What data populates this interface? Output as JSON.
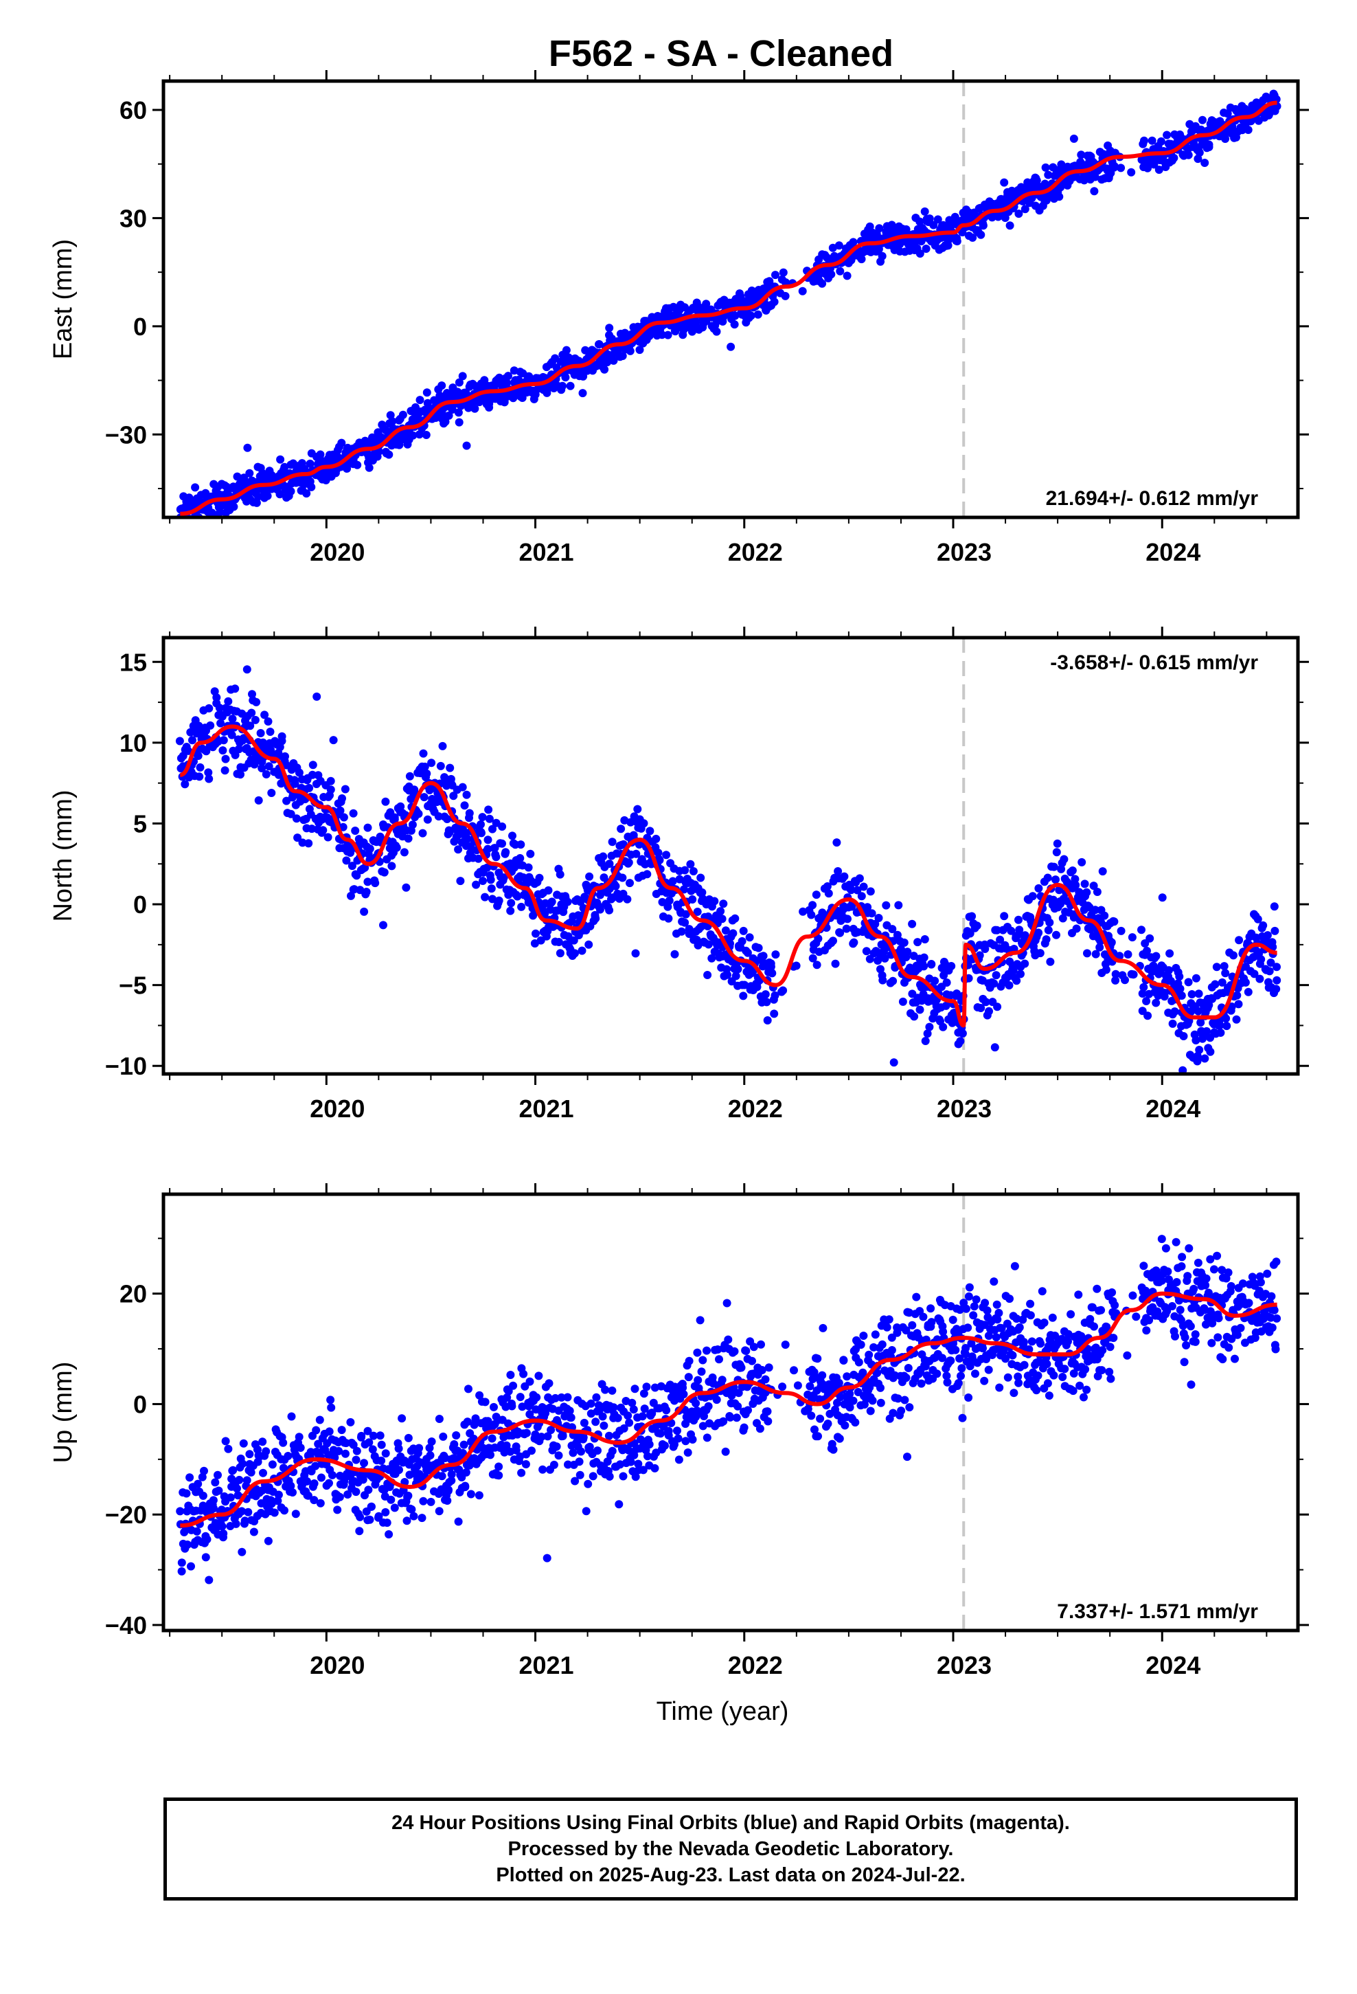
{
  "chart_data": [
    {
      "type": "scatter",
      "title": "F562  - SA - Cleaned",
      "ylabel": "East (mm)",
      "xlabel": "",
      "xlim": [
        2019.22,
        2024.65
      ],
      "ylim": [
        -53,
        68
      ],
      "xticks": [
        2020,
        2021,
        2022,
        2023,
        2024
      ],
      "yticks": [
        -30,
        0,
        30,
        60
      ],
      "grid": false,
      "marker_date": 2023.05,
      "rate_text": "21.694+/- 0.612 mm/yr",
      "rate_position": "bottom-right",
      "colors": {
        "points": "#0000ff",
        "model": "#ff0000",
        "marker": "#c8c8c8"
      },
      "series": [
        {
          "kind": "model-curve",
          "x": [
            2019.3,
            2019.5,
            2019.7,
            2019.9,
            2020.0,
            2020.2,
            2020.4,
            2020.6,
            2020.8,
            2021.0,
            2021.2,
            2021.4,
            2021.6,
            2021.8,
            2022.0,
            2022.2,
            2022.4,
            2022.6,
            2022.8,
            2023.0,
            2023.05,
            2023.2,
            2023.4,
            2023.6,
            2023.8,
            2024.0,
            2024.2,
            2024.4,
            2024.55
          ],
          "y": [
            -52,
            -48,
            -44,
            -41,
            -39,
            -34,
            -28,
            -21,
            -18,
            -16,
            -11,
            -5,
            1,
            3,
            5,
            11,
            17,
            23,
            25,
            26,
            28,
            32,
            37,
            43,
            47,
            48,
            53,
            58,
            62
          ]
        },
        {
          "kind": "points",
          "x_start": 2019.3,
          "x_end": 2024.55,
          "gaps": [
            [
              2022.15,
              2022.32
            ],
            [
              2023.78,
              2023.9
            ]
          ],
          "spread": 3.2
        }
      ]
    },
    {
      "type": "scatter",
      "ylabel": "North (mm)",
      "xlabel": "",
      "xlim": [
        2019.22,
        2024.65
      ],
      "ylim": [
        -10.5,
        16.5
      ],
      "xticks": [
        2020,
        2021,
        2022,
        2023,
        2024
      ],
      "yticks": [
        -10,
        -5,
        0,
        5,
        10,
        15
      ],
      "grid": false,
      "marker_date": 2023.05,
      "rate_text": "-3.658+/- 0.615 mm/yr",
      "rate_position": "top-right",
      "colors": {
        "points": "#0000ff",
        "model": "#ff0000",
        "marker": "#c8c8c8"
      },
      "series": [
        {
          "kind": "model-curve",
          "x": [
            2019.3,
            2019.4,
            2019.55,
            2019.75,
            2019.85,
            2020.0,
            2020.1,
            2020.2,
            2020.35,
            2020.5,
            2020.65,
            2020.8,
            2020.95,
            2021.05,
            2021.2,
            2021.3,
            2021.5,
            2021.65,
            2021.8,
            2022.0,
            2022.15,
            2022.3,
            2022.5,
            2022.65,
            2022.8,
            2023.0,
            2023.05,
            2023.06,
            2023.15,
            2023.3,
            2023.5,
            2023.65,
            2023.8,
            2024.0,
            2024.15,
            2024.25,
            2024.45,
            2024.55
          ],
          "y": [
            8,
            10,
            11,
            9,
            7,
            6,
            4,
            2.5,
            5,
            7.5,
            5,
            2.5,
            1,
            -1,
            -1.5,
            1,
            4,
            1,
            -1,
            -3.5,
            -5,
            -2,
            0.3,
            -2,
            -4.5,
            -6,
            -7.5,
            -2.5,
            -4,
            -3,
            1.2,
            -1,
            -3.5,
            -5,
            -7,
            -7,
            -2.5,
            -3
          ]
        },
        {
          "kind": "points",
          "x_start": 2019.3,
          "x_end": 2024.55,
          "gaps": [
            [
              2022.15,
              2022.32
            ],
            [
              2023.78,
              2023.9
            ]
          ],
          "spread": 1.8
        }
      ]
    },
    {
      "type": "scatter",
      "ylabel": "Up (mm)",
      "xlabel": "Time (year)",
      "xlim": [
        2019.22,
        2024.65
      ],
      "ylim": [
        -41,
        38
      ],
      "xticks": [
        2020,
        2021,
        2022,
        2023,
        2024
      ],
      "yticks": [
        -40,
        -20,
        0,
        20
      ],
      "grid": false,
      "marker_date": 2023.05,
      "rate_text": "7.337+/- 1.571 mm/yr",
      "rate_position": "bottom-right",
      "colors": {
        "points": "#0000ff",
        "model": "#ff0000",
        "marker": "#c8c8c8"
      },
      "series": [
        {
          "kind": "model-curve",
          "x": [
            2019.3,
            2019.5,
            2019.7,
            2019.95,
            2020.2,
            2020.4,
            2020.6,
            2020.8,
            2021.0,
            2021.2,
            2021.4,
            2021.6,
            2021.8,
            2022.0,
            2022.2,
            2022.35,
            2022.5,
            2022.7,
            2022.9,
            2023.05,
            2023.2,
            2023.4,
            2023.55,
            2023.7,
            2023.85,
            2024.0,
            2024.2,
            2024.35,
            2024.55
          ],
          "y": [
            -22,
            -20,
            -14,
            -10,
            -12,
            -15,
            -11,
            -5,
            -3,
            -5,
            -7,
            -3,
            2,
            4,
            2,
            0,
            3,
            8,
            11,
            12,
            11,
            9,
            9,
            12,
            17,
            20,
            19,
            16,
            18
          ]
        },
        {
          "kind": "points",
          "x_start": 2019.3,
          "x_end": 2024.55,
          "gaps": [
            [
              2022.12,
              2022.3
            ],
            [
              2023.78,
              2023.9
            ]
          ],
          "spread": 6.5
        }
      ]
    }
  ],
  "footer": {
    "line1": "24 Hour Positions Using Final Orbits (blue) and Rapid Orbits (magenta).",
    "line2": "Processed by the Nevada Geodetic Laboratory.",
    "line3": "Plotted on 2025-Aug-23. Last data on 2024-Jul-22."
  }
}
